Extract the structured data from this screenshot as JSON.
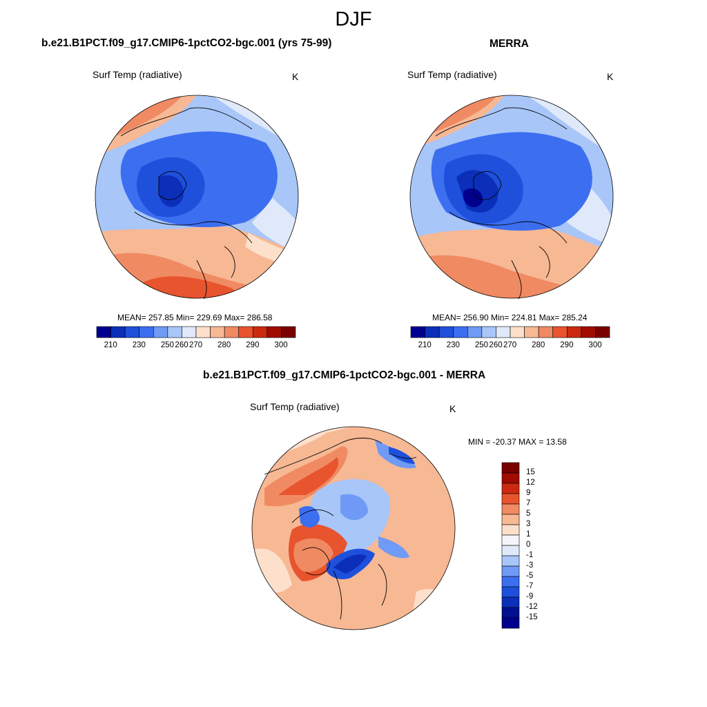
{
  "title": "DJF",
  "panels": [
    {
      "title": "b.e21.B1PCT.f09_g17.CMIP6-1pctCO2-bgc.001 (yrs 75-99)",
      "variable": "Surf Temp (radiative)",
      "units": "K",
      "stats": "MEAN= 257.85  Min= 229.69  Max= 286.58",
      "colorbar_labels": [
        "210",
        "230",
        "250",
        "260",
        "270",
        "280",
        "290",
        "300"
      ]
    },
    {
      "title": "MERRA",
      "variable": "Surf Temp (radiative)",
      "units": "K",
      "stats": "MEAN= 256.90  Min= 224.81  Max= 285.24",
      "colorbar_labels": [
        "210",
        "230",
        "250",
        "260",
        "270",
        "280",
        "290",
        "300"
      ]
    },
    {
      "title": "b.e21.B1PCT.f09_g17.CMIP6-1pctCO2-bgc.001 - MERRA",
      "variable": "Surf Temp (radiative)",
      "units": "K",
      "stats": "MIN = -20.37 MAX =  13.58",
      "colorbar_labels": [
        "15",
        "12",
        "9",
        "7",
        "5",
        "3",
        "1",
        "0",
        "-1",
        "-3",
        "-5",
        "-7",
        "-9",
        "-12",
        "-15"
      ]
    }
  ],
  "colors": {
    "abs_scale": [
      "#00008f",
      "#0b2fb8",
      "#1e50dc",
      "#3c6ef0",
      "#6f9af5",
      "#a8c6f8",
      "#dfe9fa",
      "#fde0cc",
      "#f7b894",
      "#f08a62",
      "#e8542e",
      "#cc2a10",
      "#a00c00",
      "#7a0000"
    ],
    "diff_scale": [
      "#7a0000",
      "#a00c00",
      "#cc2a10",
      "#e8542e",
      "#f08a62",
      "#f7b894",
      "#fde0cc",
      "#f6f6fa",
      "#dfe9fa",
      "#a8c6f8",
      "#6f9af5",
      "#3c6ef0",
      "#1e50dc",
      "#0b2fb8",
      "#00108f",
      "#00008f"
    ]
  }
}
